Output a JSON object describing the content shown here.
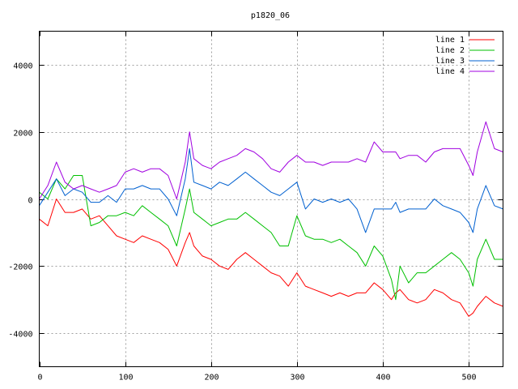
{
  "chart_data": {
    "type": "line",
    "title": "p1820_06",
    "xlabel": "",
    "ylabel": "",
    "xlim": [
      0,
      540
    ],
    "ylim": [
      -5000,
      5000
    ],
    "x_ticks": [
      0,
      100,
      200,
      300,
      400,
      500
    ],
    "y_ticks": [
      -4000,
      -2000,
      0,
      2000,
      4000
    ],
    "grid": true,
    "legend_position": "top-right",
    "x": [
      0,
      10,
      20,
      30,
      40,
      50,
      60,
      70,
      80,
      90,
      100,
      110,
      120,
      130,
      140,
      150,
      160,
      170,
      175,
      180,
      190,
      200,
      210,
      220,
      230,
      240,
      250,
      260,
      270,
      280,
      290,
      300,
      310,
      320,
      330,
      340,
      350,
      360,
      370,
      380,
      390,
      400,
      410,
      415,
      420,
      430,
      440,
      450,
      460,
      470,
      480,
      490,
      500,
      505,
      510,
      520,
      530,
      540
    ],
    "series": [
      {
        "name": "line 1",
        "color": "#ff0000",
        "values": [
          -600,
          -800,
          0,
          -400,
          -400,
          -300,
          -600,
          -500,
          -800,
          -1100,
          -1200,
          -1300,
          -1100,
          -1200,
          -1300,
          -1500,
          -2000,
          -1300,
          -1000,
          -1400,
          -1700,
          -1800,
          -2000,
          -2100,
          -1800,
          -1600,
          -1800,
          -2000,
          -2200,
          -2300,
          -2600,
          -2200,
          -2600,
          -2700,
          -2800,
          -2900,
          -2800,
          -2900,
          -2800,
          -2800,
          -2500,
          -2700,
          -3000,
          -2800,
          -2700,
          -3000,
          -3100,
          -3000,
          -2700,
          -2800,
          -3000,
          -3100,
          -3500,
          -3400,
          -3200,
          -2900,
          -3100,
          -3200
        ]
      },
      {
        "name": "line 2",
        "color": "#00c000",
        "values": [
          200,
          0,
          600,
          300,
          700,
          700,
          -800,
          -700,
          -500,
          -500,
          -400,
          -500,
          -200,
          -400,
          -600,
          -800,
          -1400,
          -300,
          300,
          -400,
          -600,
          -800,
          -700,
          -600,
          -600,
          -400,
          -600,
          -800,
          -1000,
          -1400,
          -1400,
          -500,
          -1100,
          -1200,
          -1200,
          -1300,
          -1200,
          -1400,
          -1600,
          -2000,
          -1400,
          -1700,
          -2400,
          -3000,
          -2000,
          -2500,
          -2200,
          -2200,
          -2000,
          -1800,
          -1600,
          -1800,
          -2200,
          -2600,
          -1800,
          -1200,
          -1800,
          -1800
        ]
      },
      {
        "name": "line 3",
        "color": "#0060d0",
        "values": [
          -200,
          200,
          600,
          100,
          300,
          200,
          -100,
          -100,
          100,
          -100,
          300,
          300,
          400,
          300,
          300,
          0,
          -500,
          600,
          1500,
          500,
          400,
          300,
          500,
          400,
          600,
          800,
          600,
          400,
          200,
          100,
          300,
          500,
          -300,
          0,
          -100,
          0,
          -100,
          0,
          -300,
          -1000,
          -300,
          -300,
          -300,
          -100,
          -400,
          -300,
          -300,
          -300,
          0,
          -200,
          -300,
          -400,
          -700,
          -1000,
          -300,
          400,
          -200,
          -300
        ]
      },
      {
        "name": "line 4",
        "color": "#a000e0",
        "values": [
          0,
          400,
          1100,
          500,
          300,
          400,
          300,
          200,
          300,
          400,
          800,
          900,
          800,
          900,
          900,
          700,
          0,
          1100,
          2000,
          1200,
          1000,
          900,
          1100,
          1200,
          1300,
          1500,
          1400,
          1200,
          900,
          800,
          1100,
          1300,
          1100,
          1100,
          1000,
          1100,
          1100,
          1100,
          1200,
          1100,
          1700,
          1400,
          1400,
          1400,
          1200,
          1300,
          1300,
          1100,
          1400,
          1500,
          1500,
          1500,
          1000,
          700,
          1400,
          2300,
          1500,
          1400
        ]
      }
    ]
  }
}
